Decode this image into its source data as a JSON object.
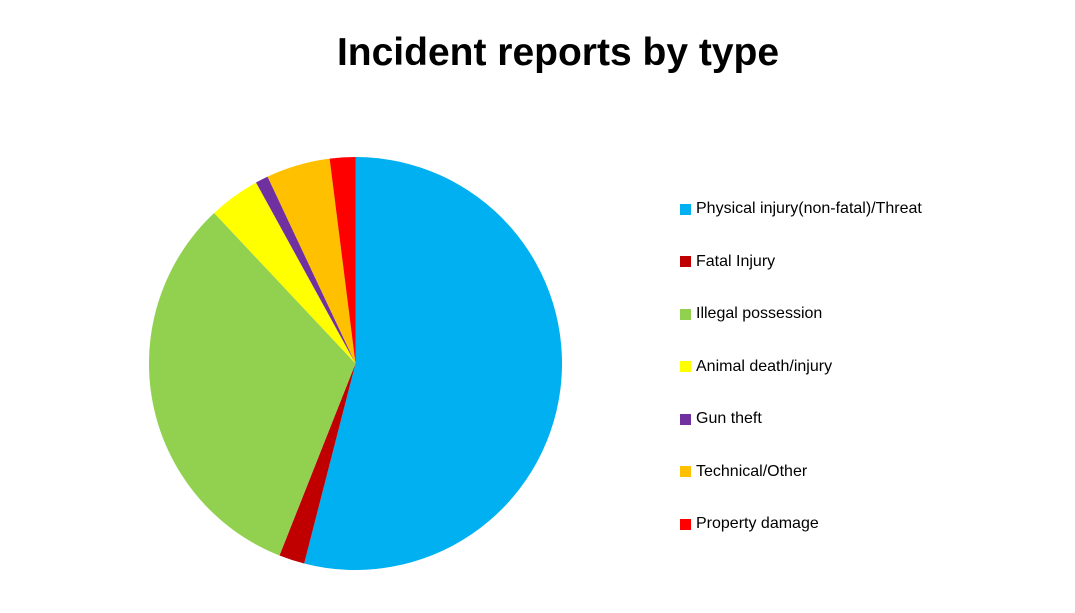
{
  "colors": {
    "background": "#FFFFFF",
    "text": "#000000"
  },
  "chart_data": {
    "type": "pie",
    "title": "Incident reports by type",
    "unit": "percent (estimated from slice angles)",
    "start_angle_deg": 0,
    "direction": "clockwise",
    "legend_position": "right",
    "grid": false,
    "slices": [
      {
        "label": "Physical injury(non-fatal)/Threat",
        "value": 54,
        "color": "#00B0F0"
      },
      {
        "label": "Fatal Injury",
        "value": 2,
        "color": "#C00000"
      },
      {
        "label": "Illegal possession",
        "value": 32,
        "color": "#92D050"
      },
      {
        "label": "Animal death/injury",
        "value": 4,
        "color": "#FFFF00"
      },
      {
        "label": "Gun theft",
        "value": 1,
        "color": "#7030A0"
      },
      {
        "label": "Technical/Other",
        "value": 5,
        "color": "#FFC000"
      },
      {
        "label": "Property damage",
        "value": 2,
        "color": "#FF0000"
      }
    ]
  }
}
